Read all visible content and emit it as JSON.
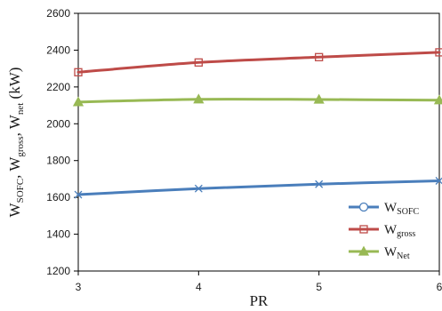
{
  "chart_data": {
    "type": "line",
    "x": [
      3,
      4,
      5,
      6
    ],
    "xlabel": "PR",
    "ylabel": "W_SOFC, W_gross, W_net (kW)",
    "ylabel_parts": {
      "w1": "W",
      "s1": "SOFC",
      "sep1": ", ",
      "w2": "W",
      "s2": "gross",
      "sep2": ", ",
      "w3": "W",
      "s3": "net",
      "unit": " (kW)"
    },
    "xlim": [
      3,
      6
    ],
    "ylim": [
      1200,
      2600
    ],
    "x_ticks": [
      "3",
      "4",
      "5",
      "6"
    ],
    "y_ticks": [
      "1200",
      "1400",
      "1600",
      "1800",
      "2000",
      "2200",
      "2400",
      "2600"
    ],
    "grid": false,
    "legend_position": "bottom-right",
    "series": [
      {
        "name": "W_SOFC",
        "legend": {
          "main": "W",
          "sub": "SOFC"
        },
        "color": "#4a7ebb",
        "marker": "x",
        "values": [
          1615,
          1648,
          1672,
          1690
        ]
      },
      {
        "name": "W_gross",
        "legend": {
          "main": "W",
          "sub": "gross"
        },
        "color": "#be4b48",
        "marker": "square",
        "values": [
          2280,
          2333,
          2362,
          2388
        ]
      },
      {
        "name": "W_Net",
        "legend": {
          "main": "W",
          "sub": "Net"
        },
        "color": "#98b954",
        "marker": "triangle",
        "values": [
          2118,
          2133,
          2132,
          2128
        ]
      }
    ]
  }
}
